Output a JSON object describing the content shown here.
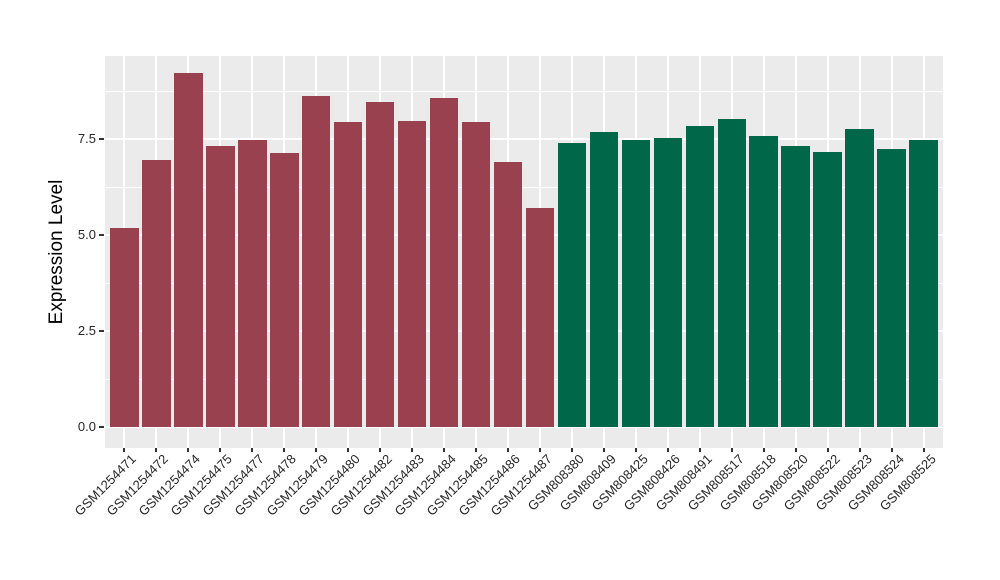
{
  "chart_data": {
    "type": "bar",
    "title": "",
    "xlabel": "",
    "ylabel": "Expression Level",
    "legend_position": "none",
    "grid": true,
    "panel_bg": "#ebebeb",
    "grid_color": "#ffffff",
    "tick_color": "#333333",
    "tick_text_color": "#262626",
    "ylim": [
      0,
      9.66
    ],
    "yticks": {
      "values": [
        0,
        2.5,
        5,
        7.5
      ],
      "labels": [
        "0.0",
        "2.5",
        "5.0",
        "7.5"
      ]
    },
    "minor_gridlines": [
      1.25,
      3.75,
      6.25,
      8.75
    ],
    "categories": [
      "GSM1254471",
      "GSM1254472",
      "GSM1254474",
      "GSM1254475",
      "GSM1254477",
      "GSM1254478",
      "GSM1254479",
      "GSM1254480",
      "GSM1254482",
      "GSM1254483",
      "GSM1254484",
      "GSM1254485",
      "GSM1254486",
      "GSM1254487",
      "GSM808380",
      "GSM808409",
      "GSM808425",
      "GSM808426",
      "GSM808491",
      "GSM808517",
      "GSM808518",
      "GSM808520",
      "GSM808522",
      "GSM808523",
      "GSM808524",
      "GSM808525"
    ],
    "values": [
      5.18,
      6.95,
      9.21,
      7.32,
      7.47,
      7.13,
      8.62,
      7.93,
      8.47,
      7.97,
      8.58,
      7.93,
      6.91,
      5.71,
      7.4,
      7.68,
      7.47,
      7.52,
      7.83,
      8.02,
      7.59,
      7.31,
      7.16,
      7.76,
      7.24,
      7.47
    ],
    "groups": [
      "group1",
      "group1",
      "group1",
      "group1",
      "group1",
      "group1",
      "group1",
      "group1",
      "group1",
      "group1",
      "group1",
      "group1",
      "group1",
      "group1",
      "group2",
      "group2",
      "group2",
      "group2",
      "group2",
      "group2",
      "group2",
      "group2",
      "group2",
      "group2",
      "group2",
      "group2"
    ],
    "group_colors": {
      "group1": "#9a4150",
      "group2": "#006848"
    }
  }
}
